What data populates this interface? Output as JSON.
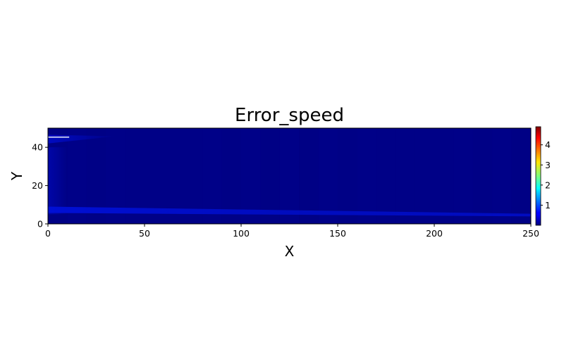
{
  "chart_data": {
    "type": "heatmap",
    "title": "Error_speed",
    "xlabel": "X",
    "ylabel": "Y",
    "xlim": [
      0,
      250
    ],
    "ylim": [
      0,
      50
    ],
    "x_ticks": [
      "0",
      "50",
      "100",
      "150",
      "200",
      "250"
    ],
    "y_ticks": [
      "0",
      "20",
      "40"
    ],
    "colorbar": {
      "colormap": "jet",
      "range": [
        0,
        4.9
      ],
      "ticks": [
        "1",
        "2",
        "3",
        "4"
      ]
    },
    "grid": false,
    "background_value": 0.05,
    "features": [
      {
        "name": "near-wall band",
        "x_start": 0,
        "x_end": 250,
        "y_start": 7.5,
        "y_end": 4.5,
        "value": 0.3
      },
      {
        "name": "inlet streak",
        "x_start": 0,
        "x_end": 11,
        "y": 45.3,
        "value": 0.0
      },
      {
        "name": "upper leading wedge",
        "x_start": 0,
        "x_end": 35,
        "y_start": 46.5,
        "y_end": 42,
        "value": 0.22
      },
      {
        "name": "left inflow region",
        "x_start": 0,
        "x_end": 10,
        "y_start": 5,
        "y_end": 40,
        "value": 0.12
      }
    ]
  }
}
